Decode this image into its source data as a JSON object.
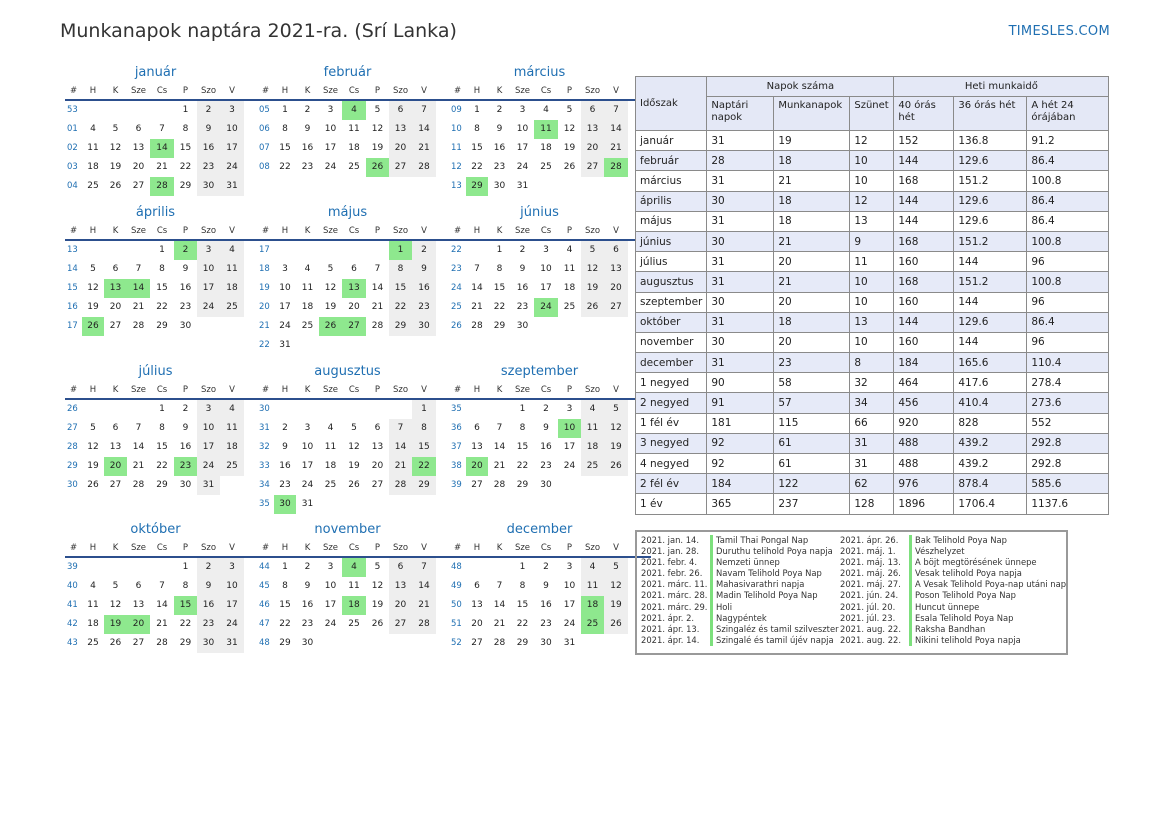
{
  "header": {
    "title": "Munkanapok naptára 2021-ra. (Srí Lanka)",
    "site": "TIMESLES.COM"
  },
  "calendar": {
    "weekday_headers": [
      "#",
      "H",
      "K",
      "Sze",
      "Cs",
      "P",
      "Szo",
      "V"
    ],
    "months": [
      {
        "name": "január",
        "weeks": [
          {
            "w": "53",
            "d": [
              "",
              "",
              "",
              "",
              "1",
              "2",
              "3"
            ]
          },
          {
            "w": "01",
            "d": [
              "4",
              "5",
              "6",
              "7",
              "8",
              "9",
              "10"
            ]
          },
          {
            "w": "02",
            "d": [
              "11",
              "12",
              "13",
              "14",
              "15",
              "16",
              "17"
            ]
          },
          {
            "w": "03",
            "d": [
              "18",
              "19",
              "20",
              "21",
              "22",
              "23",
              "24"
            ]
          },
          {
            "w": "04",
            "d": [
              "25",
              "26",
              "27",
              "28",
              "29",
              "30",
              "31"
            ]
          }
        ],
        "holidays": [
          "14",
          "28"
        ]
      },
      {
        "name": "február",
        "weeks": [
          {
            "w": "05",
            "d": [
              "1",
              "2",
              "3",
              "4",
              "5",
              "6",
              "7"
            ]
          },
          {
            "w": "06",
            "d": [
              "8",
              "9",
              "10",
              "11",
              "12",
              "13",
              "14"
            ]
          },
          {
            "w": "07",
            "d": [
              "15",
              "16",
              "17",
              "18",
              "19",
              "20",
              "21"
            ]
          },
          {
            "w": "08",
            "d": [
              "22",
              "23",
              "24",
              "25",
              "26",
              "27",
              "28"
            ]
          }
        ],
        "holidays": [
          "4",
          "26"
        ]
      },
      {
        "name": "március",
        "weeks": [
          {
            "w": "09",
            "d": [
              "1",
              "2",
              "3",
              "4",
              "5",
              "6",
              "7"
            ]
          },
          {
            "w": "10",
            "d": [
              "8",
              "9",
              "10",
              "11",
              "12",
              "13",
              "14"
            ]
          },
          {
            "w": "11",
            "d": [
              "15",
              "16",
              "17",
              "18",
              "19",
              "20",
              "21"
            ]
          },
          {
            "w": "12",
            "d": [
              "22",
              "23",
              "24",
              "25",
              "26",
              "27",
              "28"
            ]
          },
          {
            "w": "13",
            "d": [
              "29",
              "30",
              "31",
              "",
              "",
              "",
              ""
            ]
          }
        ],
        "holidays": [
          "11",
          "28",
          "29"
        ]
      },
      {
        "name": "április",
        "weeks": [
          {
            "w": "13",
            "d": [
              "",
              "",
              "",
              "1",
              "2",
              "3",
              "4"
            ]
          },
          {
            "w": "14",
            "d": [
              "5",
              "6",
              "7",
              "8",
              "9",
              "10",
              "11"
            ]
          },
          {
            "w": "15",
            "d": [
              "12",
              "13",
              "14",
              "15",
              "16",
              "17",
              "18"
            ]
          },
          {
            "w": "16",
            "d": [
              "19",
              "20",
              "21",
              "22",
              "23",
              "24",
              "25"
            ]
          },
          {
            "w": "17",
            "d": [
              "26",
              "27",
              "28",
              "29",
              "30",
              "",
              ""
            ]
          }
        ],
        "holidays": [
          "2",
          "13",
          "14",
          "26"
        ]
      },
      {
        "name": "május",
        "weeks": [
          {
            "w": "17",
            "d": [
              "",
              "",
              "",
              "",
              "",
              "1",
              "2"
            ]
          },
          {
            "w": "18",
            "d": [
              "3",
              "4",
              "5",
              "6",
              "7",
              "8",
              "9"
            ]
          },
          {
            "w": "19",
            "d": [
              "10",
              "11",
              "12",
              "13",
              "14",
              "15",
              "16"
            ]
          },
          {
            "w": "20",
            "d": [
              "17",
              "18",
              "19",
              "20",
              "21",
              "22",
              "23"
            ]
          },
          {
            "w": "21",
            "d": [
              "24",
              "25",
              "26",
              "27",
              "28",
              "29",
              "30"
            ]
          },
          {
            "w": "22",
            "d": [
              "31",
              "",
              "",
              "",
              "",
              "",
              ""
            ]
          }
        ],
        "holidays": [
          "1",
          "13",
          "26",
          "27"
        ]
      },
      {
        "name": "június",
        "weeks": [
          {
            "w": "22",
            "d": [
              "",
              "1",
              "2",
              "3",
              "4",
              "5",
              "6"
            ]
          },
          {
            "w": "23",
            "d": [
              "7",
              "8",
              "9",
              "10",
              "11",
              "12",
              "13"
            ]
          },
          {
            "w": "24",
            "d": [
              "14",
              "15",
              "16",
              "17",
              "18",
              "19",
              "20"
            ]
          },
          {
            "w": "25",
            "d": [
              "21",
              "22",
              "23",
              "24",
              "25",
              "26",
              "27"
            ]
          },
          {
            "w": "26",
            "d": [
              "28",
              "29",
              "30",
              "",
              "",
              "",
              ""
            ]
          }
        ],
        "holidays": [
          "24"
        ]
      },
      {
        "name": "július",
        "weeks": [
          {
            "w": "26",
            "d": [
              "",
              "",
              "",
              "1",
              "2",
              "3",
              "4"
            ]
          },
          {
            "w": "27",
            "d": [
              "5",
              "6",
              "7",
              "8",
              "9",
              "10",
              "11"
            ]
          },
          {
            "w": "28",
            "d": [
              "12",
              "13",
              "14",
              "15",
              "16",
              "17",
              "18"
            ]
          },
          {
            "w": "29",
            "d": [
              "19",
              "20",
              "21",
              "22",
              "23",
              "24",
              "25"
            ]
          },
          {
            "w": "30",
            "d": [
              "26",
              "27",
              "28",
              "29",
              "30",
              "31",
              ""
            ]
          }
        ],
        "holidays": [
          "20",
          "23"
        ]
      },
      {
        "name": "augusztus",
        "weeks": [
          {
            "w": "30",
            "d": [
              "",
              "",
              "",
              "",
              "",
              "",
              "1"
            ]
          },
          {
            "w": "31",
            "d": [
              "2",
              "3",
              "4",
              "5",
              "6",
              "7",
              "8"
            ]
          },
          {
            "w": "32",
            "d": [
              "9",
              "10",
              "11",
              "12",
              "13",
              "14",
              "15"
            ]
          },
          {
            "w": "33",
            "d": [
              "16",
              "17",
              "18",
              "19",
              "20",
              "21",
              "22"
            ]
          },
          {
            "w": "34",
            "d": [
              "23",
              "24",
              "25",
              "26",
              "27",
              "28",
              "29"
            ]
          },
          {
            "w": "35",
            "d": [
              "30",
              "31",
              "",
              "",
              "",
              "",
              ""
            ]
          }
        ],
        "holidays": [
          "22",
          "30"
        ]
      },
      {
        "name": "szeptember",
        "weeks": [
          {
            "w": "35",
            "d": [
              "",
              "",
              "1",
              "2",
              "3",
              "4",
              "5"
            ]
          },
          {
            "w": "36",
            "d": [
              "6",
              "7",
              "8",
              "9",
              "10",
              "11",
              "12"
            ]
          },
          {
            "w": "37",
            "d": [
              "13",
              "14",
              "15",
              "16",
              "17",
              "18",
              "19"
            ]
          },
          {
            "w": "38",
            "d": [
              "20",
              "21",
              "22",
              "23",
              "24",
              "25",
              "26"
            ]
          },
          {
            "w": "39",
            "d": [
              "27",
              "28",
              "29",
              "30",
              "",
              "",
              ""
            ]
          }
        ],
        "holidays": [
          "10",
          "20"
        ]
      },
      {
        "name": "október",
        "weeks": [
          {
            "w": "39",
            "d": [
              "",
              "",
              "",
              "",
              "1",
              "2",
              "3"
            ]
          },
          {
            "w": "40",
            "d": [
              "4",
              "5",
              "6",
              "7",
              "8",
              "9",
              "10"
            ]
          },
          {
            "w": "41",
            "d": [
              "11",
              "12",
              "13",
              "14",
              "15",
              "16",
              "17"
            ]
          },
          {
            "w": "42",
            "d": [
              "18",
              "19",
              "20",
              "21",
              "22",
              "23",
              "24"
            ]
          },
          {
            "w": "43",
            "d": [
              "25",
              "26",
              "27",
              "28",
              "29",
              "30",
              "31"
            ]
          }
        ],
        "holidays": [
          "15",
          "19",
          "20"
        ]
      },
      {
        "name": "november",
        "weeks": [
          {
            "w": "44",
            "d": [
              "1",
              "2",
              "3",
              "4",
              "5",
              "6",
              "7"
            ]
          },
          {
            "w": "45",
            "d": [
              "8",
              "9",
              "10",
              "11",
              "12",
              "13",
              "14"
            ]
          },
          {
            "w": "46",
            "d": [
              "15",
              "16",
              "17",
              "18",
              "19",
              "20",
              "21"
            ]
          },
          {
            "w": "47",
            "d": [
              "22",
              "23",
              "24",
              "25",
              "26",
              "27",
              "28"
            ]
          },
          {
            "w": "48",
            "d": [
              "29",
              "30",
              "",
              "",
              "",
              "",
              ""
            ]
          }
        ],
        "holidays": [
          "4",
          "18"
        ]
      },
      {
        "name": "december",
        "weeks": [
          {
            "w": "48",
            "d": [
              "",
              "",
              "1",
              "2",
              "3",
              "4",
              "5"
            ]
          },
          {
            "w": "49",
            "d": [
              "6",
              "7",
              "8",
              "9",
              "10",
              "11",
              "12"
            ]
          },
          {
            "w": "50",
            "d": [
              "13",
              "14",
              "15",
              "16",
              "17",
              "18",
              "19"
            ]
          },
          {
            "w": "51",
            "d": [
              "20",
              "21",
              "22",
              "23",
              "24",
              "25",
              "26"
            ]
          },
          {
            "w": "52",
            "d": [
              "27",
              "28",
              "29",
              "30",
              "31",
              "",
              ""
            ]
          }
        ],
        "holidays": [
          "18",
          "25"
        ]
      }
    ]
  },
  "summary": {
    "period_header": "Időszak",
    "group_days": "Napok száma",
    "group_hours": "Heti munkaidő",
    "columns": [
      "Naptári napok",
      "Munkanapok",
      "Szünet",
      "40 órás hét",
      "36 órás hét",
      "A hét 24 órájában"
    ],
    "rows": [
      [
        "január",
        "31",
        "19",
        "12",
        "152",
        "136.8",
        "91.2"
      ],
      [
        "február",
        "28",
        "18",
        "10",
        "144",
        "129.6",
        "86.4"
      ],
      [
        "március",
        "31",
        "21",
        "10",
        "168",
        "151.2",
        "100.8"
      ],
      [
        "április",
        "30",
        "18",
        "12",
        "144",
        "129.6",
        "86.4"
      ],
      [
        "május",
        "31",
        "18",
        "13",
        "144",
        "129.6",
        "86.4"
      ],
      [
        "június",
        "30",
        "21",
        "9",
        "168",
        "151.2",
        "100.8"
      ],
      [
        "július",
        "31",
        "20",
        "11",
        "160",
        "144",
        "96"
      ],
      [
        "augusztus",
        "31",
        "21",
        "10",
        "168",
        "151.2",
        "100.8"
      ],
      [
        "szeptember",
        "30",
        "20",
        "10",
        "160",
        "144",
        "96"
      ],
      [
        "október",
        "31",
        "18",
        "13",
        "144",
        "129.6",
        "86.4"
      ],
      [
        "november",
        "30",
        "20",
        "10",
        "160",
        "144",
        "96"
      ],
      [
        "december",
        "31",
        "23",
        "8",
        "184",
        "165.6",
        "110.4"
      ],
      [
        "1 negyed",
        "90",
        "58",
        "32",
        "464",
        "417.6",
        "278.4"
      ],
      [
        "2 negyed",
        "91",
        "57",
        "34",
        "456",
        "410.4",
        "273.6"
      ],
      [
        "1 fél év",
        "181",
        "115",
        "66",
        "920",
        "828",
        "552"
      ],
      [
        "3 negyed",
        "92",
        "61",
        "31",
        "488",
        "439.2",
        "292.8"
      ],
      [
        "4 negyed",
        "92",
        "61",
        "31",
        "488",
        "439.2",
        "292.8"
      ],
      [
        "2 fél év",
        "184",
        "122",
        "62",
        "976",
        "878.4",
        "585.6"
      ],
      [
        "1 év",
        "365",
        "237",
        "128",
        "1896",
        "1706.4",
        "1137.6"
      ]
    ]
  },
  "holidays_list": [
    [
      [
        "2021. jan. 14.",
        "Tamil Thai Pongal Nap"
      ],
      [
        "2021. jan. 28.",
        "Duruthu telihold Poya napja"
      ],
      [
        "2021. febr. 4.",
        "Nemzeti ünnep"
      ],
      [
        "2021. febr. 26.",
        "Navam Telihold Poya Nap"
      ],
      [
        "2021. márc. 11.",
        "Mahasivarathri napja"
      ],
      [
        "2021. márc. 28.",
        "Madin Telihold Poya Nap"
      ],
      [
        "2021. márc. 29.",
        "Holi"
      ],
      [
        "2021. ápr. 2.",
        "Nagypéntek"
      ],
      [
        "2021. ápr. 13.",
        "Szingaléz és tamil szilveszter"
      ],
      [
        "2021. ápr. 14.",
        "Szingalé és tamil újév napja"
      ]
    ],
    [
      [
        "2021. ápr. 26.",
        "Bak Telihold Poya Nap"
      ],
      [
        "2021. máj. 1.",
        "Vészhelyzet"
      ],
      [
        "2021. máj. 13.",
        "A böjt megtörésének ünnepe"
      ],
      [
        "2021. máj. 26.",
        "Vesak telihold Poya napja"
      ],
      [
        "2021. máj. 27.",
        "A Vesak Telihold Poya-nap utáni nap"
      ],
      [
        "2021. jún. 24.",
        "Poson Telihold Poya Nap"
      ],
      [
        "2021. júl. 20.",
        "Huncut ünnepe"
      ],
      [
        "2021. júl. 23.",
        "Esala Telihold Poya Nap"
      ],
      [
        "2021. aug. 22.",
        "Raksha Bandhan"
      ],
      [
        "2021. aug. 22.",
        "Nikini telihold Poya napja"
      ]
    ]
  ],
  "colors": {
    "accent": "#1f6fb2",
    "holiday": "#8ee88e",
    "weekend": "#eeeeee",
    "rule": "#2c4f8d",
    "table_stripe": "#e6eaf8"
  }
}
